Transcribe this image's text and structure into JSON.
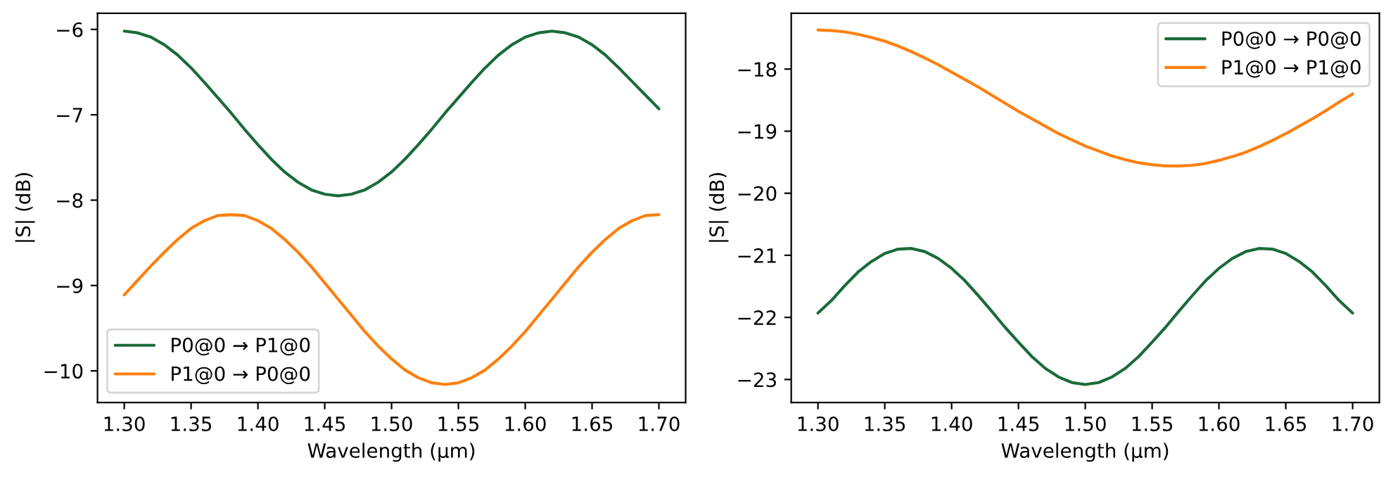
{
  "chart_data": [
    {
      "type": "line",
      "xlabel": "Wavelength (μm)",
      "ylabel": "|S| (dB)",
      "legend": "bottom left",
      "x": [
        1.3,
        1.31,
        1.32,
        1.33,
        1.34,
        1.35,
        1.36,
        1.37,
        1.38,
        1.39,
        1.4,
        1.41,
        1.42,
        1.43,
        1.44,
        1.45,
        1.46,
        1.47,
        1.48,
        1.49,
        1.5,
        1.51,
        1.52,
        1.53,
        1.54,
        1.55,
        1.56,
        1.57,
        1.58,
        1.59,
        1.6,
        1.61,
        1.62,
        1.63,
        1.64,
        1.65,
        1.66,
        1.67,
        1.68,
        1.69,
        1.7
      ],
      "xlim": [
        1.28,
        1.72
      ],
      "xticks": [
        {
          "value": 1.3,
          "label": "1.30"
        },
        {
          "value": 1.35,
          "label": "1.35"
        },
        {
          "value": 1.4,
          "label": "1.40"
        },
        {
          "value": 1.45,
          "label": "1.45"
        },
        {
          "value": 1.5,
          "label": "1.50"
        },
        {
          "value": 1.55,
          "label": "1.55"
        },
        {
          "value": 1.6,
          "label": "1.60"
        },
        {
          "value": 1.65,
          "label": "1.65"
        },
        {
          "value": 1.7,
          "label": "1.70"
        }
      ],
      "ylim": [
        -10.37,
        -5.81
      ],
      "yticks": [
        {
          "value": -10,
          "label": "−10"
        },
        {
          "value": -9,
          "label": "−9"
        },
        {
          "value": -8,
          "label": "−8"
        },
        {
          "value": -7,
          "label": "−7"
        },
        {
          "value": -6,
          "label": "−6"
        }
      ],
      "series": [
        {
          "name": "P0@0 → P1@0",
          "color": "#1a6b3a",
          "values": [
            -6.02,
            -6.04,
            -6.09,
            -6.18,
            -6.3,
            -6.45,
            -6.62,
            -6.8,
            -6.98,
            -7.17,
            -7.35,
            -7.52,
            -7.67,
            -7.79,
            -7.88,
            -7.93,
            -7.95,
            -7.93,
            -7.88,
            -7.79,
            -7.67,
            -7.52,
            -7.35,
            -7.17,
            -6.98,
            -6.8,
            -6.62,
            -6.45,
            -6.3,
            -6.18,
            -6.09,
            -6.04,
            -6.02,
            -6.04,
            -6.09,
            -6.18,
            -6.3,
            -6.45,
            -6.61,
            -6.77,
            -6.93
          ]
        },
        {
          "name": "P1@0 → P0@0",
          "color": "#ff7f0e",
          "values": [
            -9.11,
            -8.94,
            -8.77,
            -8.61,
            -8.46,
            -8.33,
            -8.24,
            -8.18,
            -8.17,
            -8.18,
            -8.24,
            -8.33,
            -8.46,
            -8.61,
            -8.78,
            -8.97,
            -9.16,
            -9.35,
            -9.54,
            -9.71,
            -9.86,
            -9.99,
            -10.08,
            -10.14,
            -10.16,
            -10.14,
            -10.08,
            -9.99,
            -9.86,
            -9.71,
            -9.54,
            -9.35,
            -9.16,
            -8.97,
            -8.78,
            -8.61,
            -8.46,
            -8.33,
            -8.24,
            -8.18,
            -8.17
          ]
        }
      ]
    },
    {
      "type": "line",
      "xlabel": "Wavelength (μm)",
      "ylabel": "|S| (dB)",
      "legend": "top right",
      "x": [
        1.3,
        1.31,
        1.32,
        1.33,
        1.34,
        1.35,
        1.36,
        1.37,
        1.38,
        1.39,
        1.4,
        1.41,
        1.42,
        1.43,
        1.44,
        1.45,
        1.46,
        1.47,
        1.48,
        1.49,
        1.5,
        1.51,
        1.52,
        1.53,
        1.54,
        1.55,
        1.56,
        1.57,
        1.58,
        1.59,
        1.6,
        1.61,
        1.62,
        1.63,
        1.64,
        1.65,
        1.66,
        1.67,
        1.68,
        1.69,
        1.7
      ],
      "xlim": [
        1.28,
        1.72
      ],
      "xticks": [
        {
          "value": 1.3,
          "label": "1.30"
        },
        {
          "value": 1.35,
          "label": "1.35"
        },
        {
          "value": 1.4,
          "label": "1.40"
        },
        {
          "value": 1.45,
          "label": "1.45"
        },
        {
          "value": 1.5,
          "label": "1.50"
        },
        {
          "value": 1.55,
          "label": "1.55"
        },
        {
          "value": 1.6,
          "label": "1.60"
        },
        {
          "value": 1.65,
          "label": "1.65"
        },
        {
          "value": 1.7,
          "label": "1.70"
        }
      ],
      "ylim": [
        -23.37,
        -17.1
      ],
      "yticks": [
        {
          "value": -23,
          "label": "−23"
        },
        {
          "value": -22,
          "label": "−22"
        },
        {
          "value": -21,
          "label": "−21"
        },
        {
          "value": -20,
          "label": "−20"
        },
        {
          "value": -19,
          "label": "−19"
        },
        {
          "value": -18,
          "label": "−18"
        }
      ],
      "series": [
        {
          "name": "P0@0 → P0@0",
          "color": "#1a6b3a",
          "values": [
            -21.93,
            -21.73,
            -21.49,
            -21.27,
            -21.1,
            -20.97,
            -20.9,
            -20.89,
            -20.94,
            -21.05,
            -21.21,
            -21.41,
            -21.65,
            -21.9,
            -22.16,
            -22.4,
            -22.63,
            -22.82,
            -22.96,
            -23.05,
            -23.08,
            -23.05,
            -22.96,
            -22.82,
            -22.63,
            -22.4,
            -22.16,
            -21.9,
            -21.65,
            -21.41,
            -21.21,
            -21.05,
            -20.94,
            -20.89,
            -20.9,
            -20.97,
            -21.1,
            -21.27,
            -21.49,
            -21.73,
            -21.93
          ]
        },
        {
          "name": "P1@0 → P1@0",
          "color": "#ff7f0e",
          "values": [
            -17.37,
            -17.38,
            -17.4,
            -17.44,
            -17.49,
            -17.55,
            -17.63,
            -17.72,
            -17.82,
            -17.93,
            -18.05,
            -18.17,
            -18.29,
            -18.42,
            -18.55,
            -18.68,
            -18.8,
            -18.92,
            -19.04,
            -19.14,
            -19.24,
            -19.32,
            -19.4,
            -19.46,
            -19.51,
            -19.54,
            -19.56,
            -19.56,
            -19.55,
            -19.52,
            -19.47,
            -19.41,
            -19.34,
            -19.25,
            -19.15,
            -19.04,
            -18.92,
            -18.8,
            -18.67,
            -18.53,
            -18.4
          ]
        }
      ]
    }
  ]
}
